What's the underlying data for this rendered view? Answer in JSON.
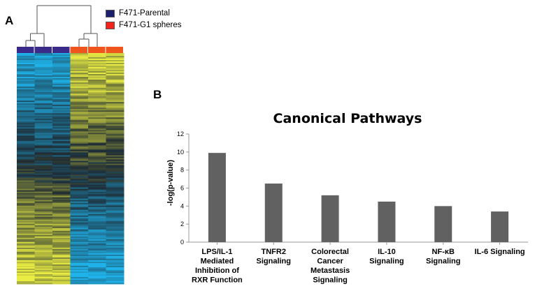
{
  "panels": {
    "a": "A",
    "b": "B"
  },
  "legend": [
    {
      "label": "F471-Parental",
      "color": "#1c1f6b"
    },
    {
      "label": "F471-G1 spheres",
      "color": "#f2241b"
    }
  ],
  "heatmap": {
    "groups": [
      "F471-Parental",
      "F471-Parental",
      "F471-Parental",
      "F471-G1 spheres",
      "F471-G1 spheres",
      "F471-G1 spheres"
    ],
    "group_colors": [
      "#3a2a8a",
      "#3a2a8a",
      "#3a2a8a",
      "#f0551e",
      "#f0551e",
      "#f0551e"
    ],
    "low_color": "#1fb3ea",
    "mid_color": "#1e2a33",
    "high_color": "#e9ec43"
  },
  "chart_data": {
    "type": "bar",
    "title": "Canonical Pathways",
    "ylabel": "-log(p-value)",
    "xlabel": "",
    "ylim": [
      0,
      12
    ],
    "yticks": [
      0,
      2,
      4,
      6,
      8,
      10,
      12
    ],
    "categories": [
      [
        "LPS/IL-1",
        "Mediated",
        "Inhibition of",
        "RXR Function"
      ],
      [
        "TNFR2",
        "Signaling"
      ],
      [
        "Colorectal",
        "Cancer",
        "Metastasis",
        "Signaling"
      ],
      [
        "IL-10",
        "Signaling"
      ],
      [
        "NF-κB",
        "Signaling"
      ],
      [
        "IL-6 Signaling"
      ]
    ],
    "values": [
      9.9,
      6.5,
      5.2,
      4.5,
      4.0,
      3.4
    ],
    "bar_color": "#616161",
    "grid": false
  }
}
